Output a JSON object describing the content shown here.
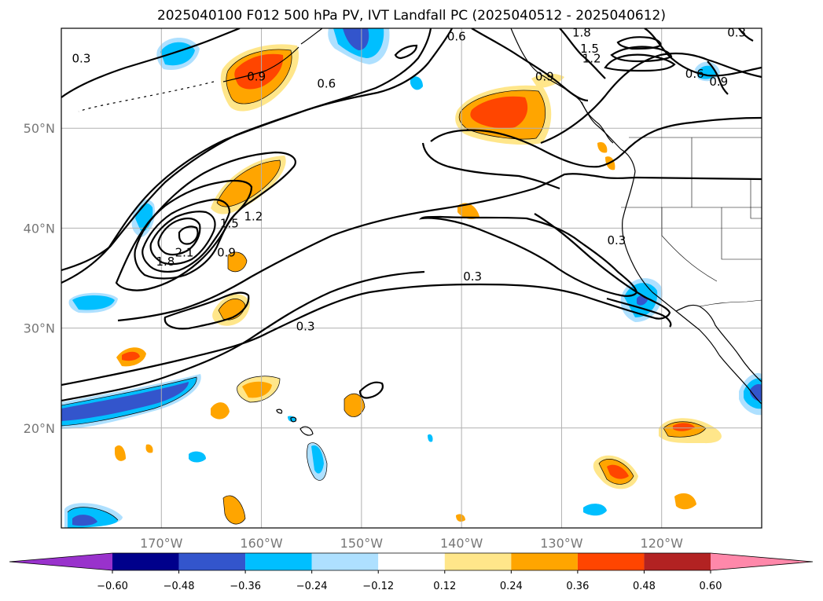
{
  "title": "2025040100 F012 500 hPa PV, IVT Landfall PC (2025040512 - 2025040612)",
  "map": {
    "lon_range": [
      -180,
      -110
    ],
    "lat_range": [
      10,
      60
    ],
    "lon_ticks": [
      {
        "value": -170,
        "label": "170°W"
      },
      {
        "value": -160,
        "label": "160°W"
      },
      {
        "value": -150,
        "label": "150°W"
      },
      {
        "value": -140,
        "label": "140°W"
      },
      {
        "value": -130,
        "label": "130°W"
      },
      {
        "value": -120,
        "label": "120°W"
      }
    ],
    "lat_ticks": [
      {
        "value": 20,
        "label": "20°N"
      },
      {
        "value": 30,
        "label": "30°N"
      },
      {
        "value": 40,
        "label": "40°N"
      },
      {
        "value": 50,
        "label": "50°N"
      }
    ],
    "gridlines": true,
    "contour_labels": [
      {
        "text": "0.3",
        "lon": -178,
        "lat": 56.8
      },
      {
        "text": "0.9",
        "lon": -160.5,
        "lat": 55.0
      },
      {
        "text": "0.6",
        "lon": -153.5,
        "lat": 54.3
      },
      {
        "text": "0.6",
        "lon": -140.5,
        "lat": 59.0
      },
      {
        "text": "1.8",
        "lon": -128.0,
        "lat": 59.4
      },
      {
        "text": "1.5",
        "lon": -127.2,
        "lat": 57.8
      },
      {
        "text": "1.2",
        "lon": -127.0,
        "lat": 56.8
      },
      {
        "text": "0.3",
        "lon": -112.5,
        "lat": 59.4
      },
      {
        "text": "0.9",
        "lon": -131.7,
        "lat": 55.0
      },
      {
        "text": "0.6",
        "lon": -116.7,
        "lat": 55.3
      },
      {
        "text": "0.9",
        "lon": -114.3,
        "lat": 54.5
      },
      {
        "text": "1.2",
        "lon": -160.8,
        "lat": 41.0
      },
      {
        "text": "1.5",
        "lon": -163.2,
        "lat": 40.3
      },
      {
        "text": "2.1",
        "lon": -167.7,
        "lat": 37.4
      },
      {
        "text": "1.8",
        "lon": -169.6,
        "lat": 36.5
      },
      {
        "text": "0.9",
        "lon": -163.5,
        "lat": 37.4
      },
      {
        "text": "0.3",
        "lon": -124.5,
        "lat": 38.6
      },
      {
        "text": "0.3",
        "lon": -138.9,
        "lat": 35.0
      },
      {
        "text": "0.3",
        "lon": -155.6,
        "lat": 30.0
      }
    ]
  },
  "colorbar": {
    "colors": [
      "#9932cc",
      "#00008b",
      "#3355cc",
      "#00bfff",
      "#aee0ff",
      "#ffffff",
      "#ffe68a",
      "#ffa500",
      "#ff4500",
      "#b22222",
      "#ff88aa"
    ],
    "labels": [
      "−0.60",
      "−0.48",
      "−0.36",
      "−0.24",
      "−0.12",
      "0.12",
      "0.24",
      "0.36",
      "0.48",
      "0.60"
    ]
  }
}
